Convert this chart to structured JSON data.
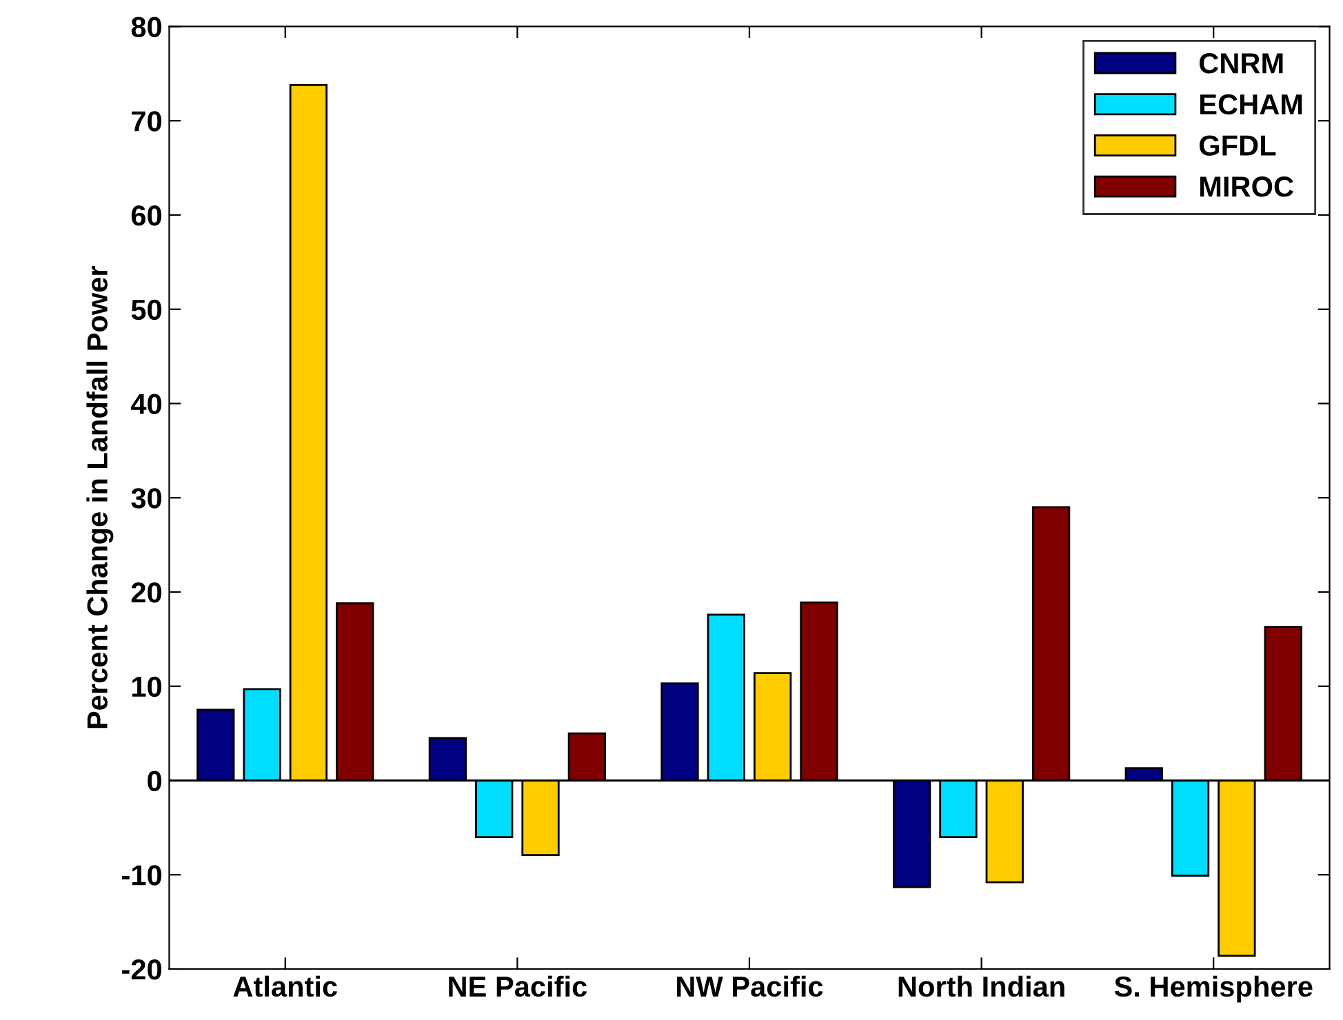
{
  "chart_data": {
    "type": "bar",
    "ylabel": "Percent Change in Landfall Power",
    "categories": [
      "Atlantic",
      "NE Pacific",
      "NW Pacific",
      "North Indian",
      "S. Hemisphere"
    ],
    "series": [
      {
        "name": "CNRM",
        "color": "#000080",
        "values": [
          7.5,
          4.5,
          10.3,
          -11.3,
          1.3
        ]
      },
      {
        "name": "ECHAM",
        "color": "#00ddff",
        "values": [
          9.7,
          -6.0,
          17.6,
          -6.0,
          -10.1
        ]
      },
      {
        "name": "GFDL",
        "color": "#ffcc00",
        "values": [
          73.8,
          -7.9,
          11.4,
          -10.8,
          -18.6
        ]
      },
      {
        "name": "MIROC",
        "color": "#800000",
        "values": [
          18.8,
          5.0,
          18.9,
          29.0,
          16.3
        ]
      }
    ],
    "ylim": [
      -20,
      80
    ],
    "yticks": [
      -20,
      -10,
      0,
      10,
      20,
      30,
      40,
      50,
      60,
      70,
      80
    ],
    "legend": "top right"
  }
}
